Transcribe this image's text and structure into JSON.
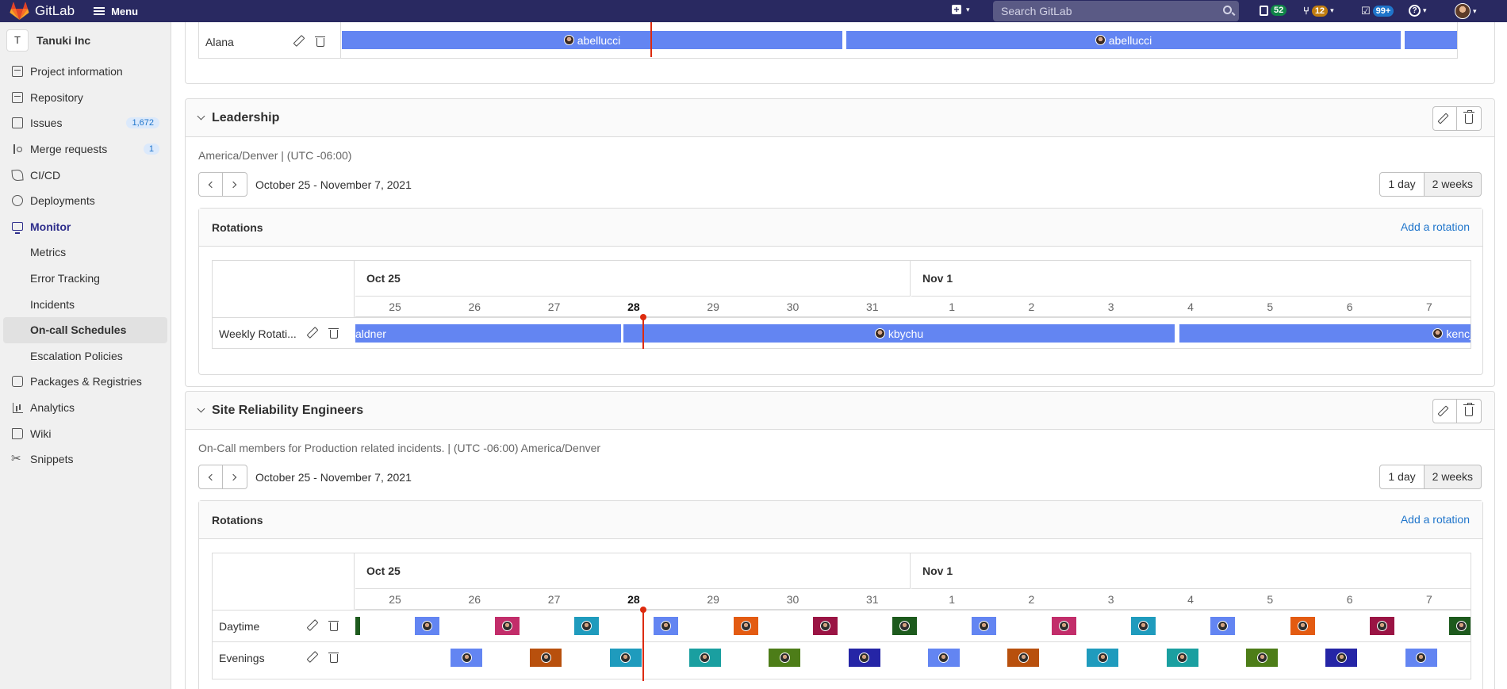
{
  "topbar": {
    "logo_text": "GitLab",
    "menu_label": "Menu",
    "search_placeholder": "Search GitLab",
    "issues_count": "52",
    "mr_count": "12",
    "todos_count": "99+"
  },
  "sidebar": {
    "context_initial": "T",
    "context_name": "Tanuki Inc",
    "items": [
      {
        "label": "Project information",
        "icon": "project-info-icon"
      },
      {
        "label": "Repository",
        "icon": "repository-icon"
      },
      {
        "label": "Issues",
        "icon": "issues-icon",
        "count": "1,672"
      },
      {
        "label": "Merge requests",
        "icon": "merge-request-icon",
        "count": "1"
      },
      {
        "label": "CI/CD",
        "icon": "rocket-icon"
      },
      {
        "label": "Deployments",
        "icon": "deployments-icon"
      },
      {
        "label": "Monitor",
        "icon": "monitor-icon"
      },
      {
        "label": "Metrics"
      },
      {
        "label": "Error Tracking"
      },
      {
        "label": "Incidents"
      },
      {
        "label": "On-call Schedules"
      },
      {
        "label": "Escalation Policies"
      },
      {
        "label": "Packages & Registries",
        "icon": "package-icon"
      },
      {
        "label": "Analytics",
        "icon": "analytics-icon"
      },
      {
        "label": "Wiki",
        "icon": "wiki-icon"
      },
      {
        "label": "Snippets",
        "icon": "snippets-icon"
      }
    ]
  },
  "prev_schedule": {
    "row_label": "Alana",
    "shift_user": "abellucci"
  },
  "schedules": [
    {
      "title": "Leadership",
      "description": "America/Denver | (UTC -06:00)",
      "date_range": "October 25 - November 7, 2021",
      "view_1day": "1 day",
      "view_2weeks": "2 weeks",
      "rotations_label": "Rotations",
      "add_rotation": "Add a rotation",
      "month_1": "Oct 25",
      "month_2": "Nov 1",
      "days": [
        "25",
        "26",
        "27",
        "28",
        "29",
        "30",
        "31",
        "1",
        "2",
        "3",
        "4",
        "5",
        "6",
        "7"
      ],
      "rotations": [
        {
          "name": "Weekly Rotati...",
          "shifts": [
            "aldner",
            "kbychu",
            "kencjol"
          ]
        }
      ]
    },
    {
      "title": "Site Reliability Engineers",
      "description": "On-Call members for Production related incidents. | (UTC -06:00) America/Denver",
      "date_range": "October 25 - November 7, 2021",
      "view_1day": "1 day",
      "view_2weeks": "2 weeks",
      "rotations_label": "Rotations",
      "add_rotation": "Add a rotation",
      "month_1": "Oct 25",
      "month_2": "Nov 1",
      "days": [
        "25",
        "26",
        "27",
        "28",
        "29",
        "30",
        "31",
        "1",
        "2",
        "3",
        "4",
        "5",
        "6",
        "7"
      ],
      "rotations": [
        {
          "name": "Daytime"
        },
        {
          "name": "Evenings"
        }
      ]
    }
  ],
  "today_label": "28",
  "colors": {
    "topbar": "#292961",
    "shift_blue": "#6385f2",
    "now_line": "#dd2b0e",
    "link": "#1f75cb",
    "daytime_blocks": [
      "#1d5a1d",
      "#6385f2",
      "#c22d6a",
      "#1f9bbd",
      "#6385f2",
      "#e35b12",
      "#9a1444",
      "#1d5a1d",
      "#6385f2",
      "#c22d6a",
      "#1f9bbd",
      "#6385f2",
      "#e35b12",
      "#9a1444",
      "#1d5a1d"
    ],
    "evening_blocks": [
      "#6385f2",
      "#b8500d",
      "#1f9bbd",
      "#1a9fa0",
      "#4d7d18",
      "#2525a6",
      "#6385f2",
      "#b8500d",
      "#1f9bbd",
      "#1a9fa0",
      "#4d7d18",
      "#2525a6",
      "#6385f2"
    ]
  }
}
